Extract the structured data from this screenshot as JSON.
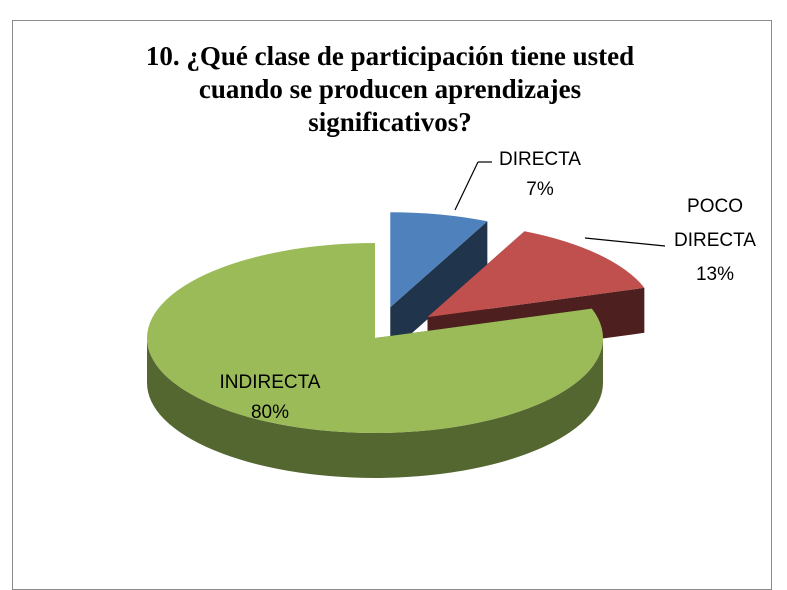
{
  "chart_data": {
    "type": "pie3d",
    "title": "10. ¿Qué clase de participación tiene usted cuando se producen aprendizajes significativos?",
    "categories": [
      "DIRECTA",
      "POCO DIRECTA",
      "INDIRECTA"
    ],
    "values": [
      7,
      13,
      80
    ],
    "value_labels": [
      "7%",
      "13%",
      "80%"
    ],
    "colors": [
      "#4f81bd",
      "#c0504d",
      "#9bbb59"
    ],
    "exploded": [
      true,
      true,
      false
    ]
  }
}
